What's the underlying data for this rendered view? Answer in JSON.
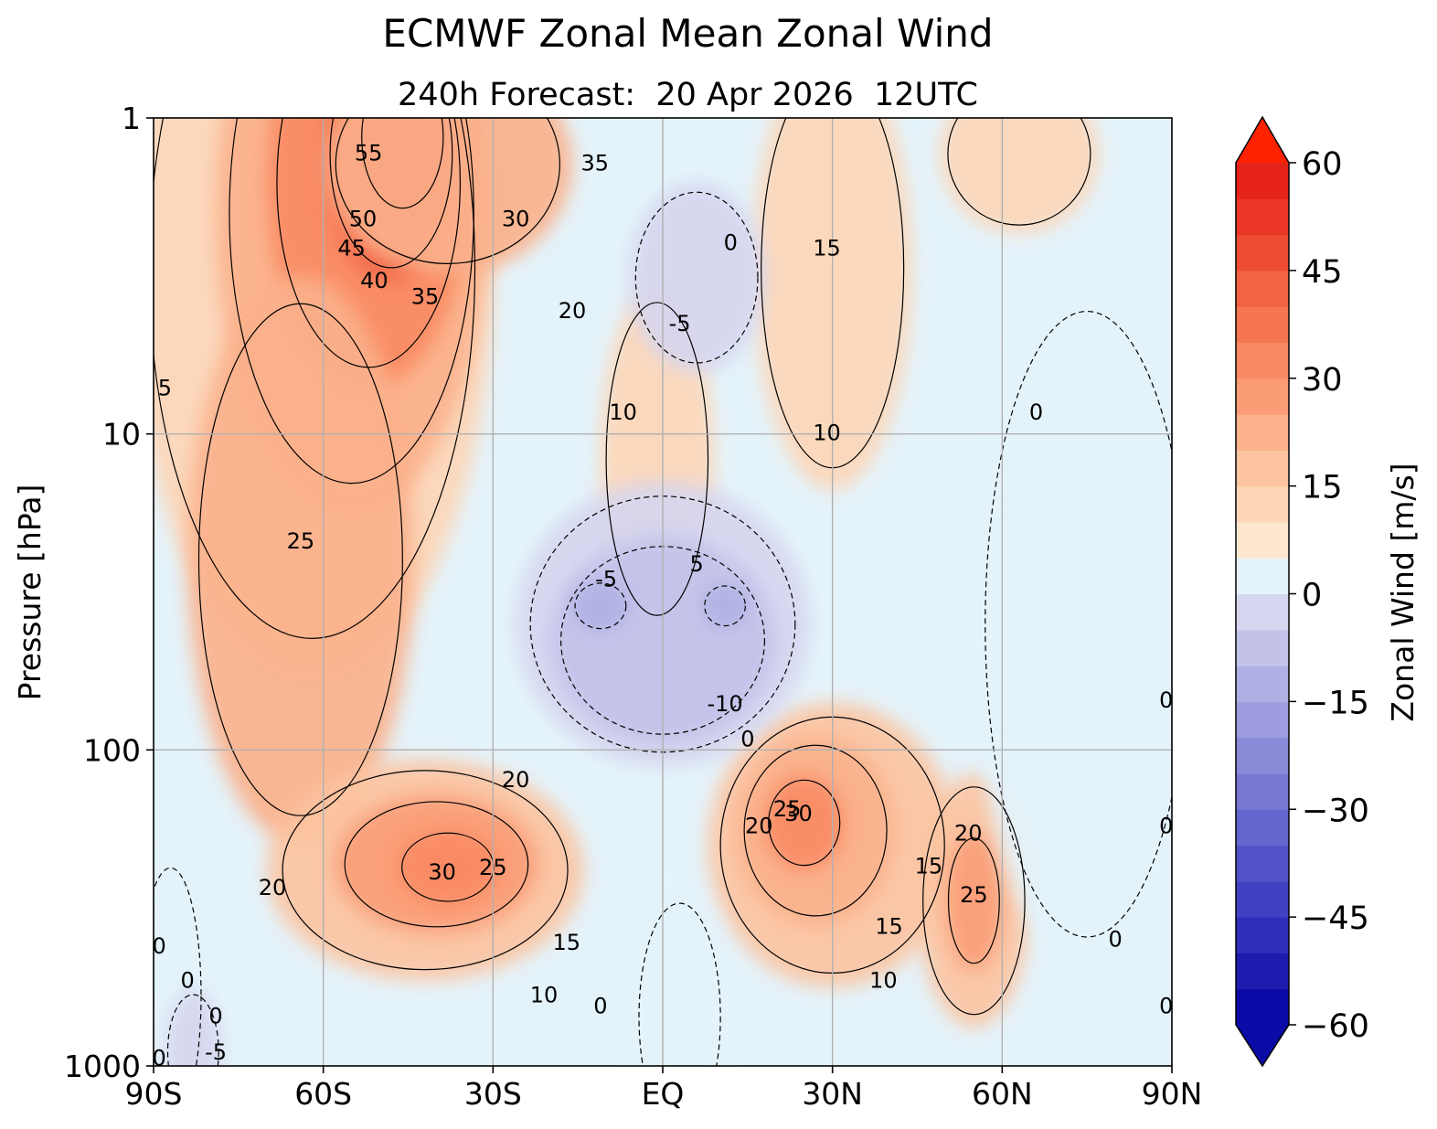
{
  "chart_data": {
    "type": "filled-contour",
    "title": "ECMWF Zonal Mean Zonal Wind",
    "subtitle": {
      "lead": "240h",
      "label": "Forecast:",
      "valid": " 20 Apr 2026  12UTC"
    },
    "x_axis": {
      "ticks": [
        "90S",
        "60S",
        "30S",
        "EQ",
        "30N",
        "60N",
        "90N"
      ],
      "tick_values": [
        -90,
        -60,
        -30,
        0,
        30,
        60,
        90
      ],
      "range": [
        -90,
        90
      ]
    },
    "y_axis": {
      "label": "Pressure [hPa]",
      "ticks": [
        "1",
        "10",
        "100",
        "1000"
      ],
      "tick_values": [
        1,
        10,
        100,
        1000
      ],
      "scale": "log",
      "inverted": true
    },
    "colorbar": {
      "label": "Zonal Wind [m/s]",
      "ticks": [
        "60",
        "45",
        "30",
        "15",
        "0",
        "−15",
        "−30",
        "−45",
        "−60"
      ],
      "tick_values": [
        60,
        45,
        30,
        15,
        0,
        -15,
        -30,
        -45,
        -60
      ],
      "range": [
        -60,
        60
      ],
      "level_step": 5,
      "extend": "both",
      "colors": [
        "#0a0aa6",
        "#1c1caf",
        "#2e2eb9",
        "#4040c2",
        "#5353c8",
        "#6565ce",
        "#7878d4",
        "#8a8ad9",
        "#9d9ddf",
        "#b0b0e5",
        "#c3c3ea",
        "#d6d6f0",
        "#e4f3fa",
        "#fde8cf",
        "#fdd6b7",
        "#fcc4a1",
        "#fbb18b",
        "#fa9d77",
        "#f98a64",
        "#f67652",
        "#f26243",
        "#ee4d34",
        "#ea3726",
        "#e62318",
        "#ff2200"
      ]
    },
    "grid": true,
    "contour_labels": [
      {
        "lat": -52,
        "p": 1.3,
        "value": "55"
      },
      {
        "lat": -12,
        "p": 1.4,
        "value": "35"
      },
      {
        "lat": -53,
        "p": 2.1,
        "value": "50"
      },
      {
        "lat": -26,
        "p": 2.1,
        "value": "30"
      },
      {
        "lat": 12,
        "p": 2.5,
        "value": "0"
      },
      {
        "lat": -55,
        "p": 2.6,
        "value": "45"
      },
      {
        "lat": 29,
        "p": 2.6,
        "value": "15"
      },
      {
        "lat": -51,
        "p": 3.3,
        "value": "40"
      },
      {
        "lat": -42,
        "p": 3.7,
        "value": "35"
      },
      {
        "lat": -16,
        "p": 4.1,
        "value": "20"
      },
      {
        "lat": 3,
        "p": 4.5,
        "value": "-5"
      },
      {
        "lat": -88,
        "p": 7.2,
        "value": "5"
      },
      {
        "lat": -7,
        "p": 8.6,
        "value": "10"
      },
      {
        "lat": 66,
        "p": 8.6,
        "value": "0"
      },
      {
        "lat": 29,
        "p": 10.0,
        "value": "10"
      },
      {
        "lat": -64,
        "p": 22,
        "value": "25"
      },
      {
        "lat": 6,
        "p": 26,
        "value": "5"
      },
      {
        "lat": -10,
        "p": 29,
        "value": "-5"
      },
      {
        "lat": 11,
        "p": 72,
        "value": "-10"
      },
      {
        "lat": 15,
        "p": 93,
        "value": "0"
      },
      {
        "lat": -26,
        "p": 125,
        "value": "20"
      },
      {
        "lat": 22,
        "p": 155,
        "value": "25"
      },
      {
        "lat": 24,
        "p": 160,
        "value": "30"
      },
      {
        "lat": 17,
        "p": 175,
        "value": "20"
      },
      {
        "lat": 54,
        "p": 185,
        "value": "20"
      },
      {
        "lat": -30,
        "p": 237,
        "value": "25"
      },
      {
        "lat": -39,
        "p": 245,
        "value": "30"
      },
      {
        "lat": 47,
        "p": 235,
        "value": "15"
      },
      {
        "lat": -69,
        "p": 275,
        "value": "20"
      },
      {
        "lat": 55,
        "p": 290,
        "value": "25"
      },
      {
        "lat": 40,
        "p": 365,
        "value": "15"
      },
      {
        "lat": -17,
        "p": 410,
        "value": "15"
      },
      {
        "lat": -89,
        "p": 420,
        "value": "0"
      },
      {
        "lat": 80,
        "p": 400,
        "value": "0"
      },
      {
        "lat": 39,
        "p": 540,
        "value": "10"
      },
      {
        "lat": -21,
        "p": 600,
        "value": "10"
      },
      {
        "lat": -84,
        "p": 540,
        "value": "0"
      },
      {
        "lat": -11,
        "p": 650,
        "value": "0"
      },
      {
        "lat": -79,
        "p": 700,
        "value": "0"
      },
      {
        "lat": 89,
        "p": 650,
        "value": "0"
      },
      {
        "lat": -79,
        "p": 910,
        "value": "-5"
      },
      {
        "lat": -89,
        "p": 950,
        "value": "0"
      },
      {
        "lat": 89,
        "p": 70,
        "value": "0"
      },
      {
        "lat": 89,
        "p": 175,
        "value": "0"
      }
    ]
  }
}
